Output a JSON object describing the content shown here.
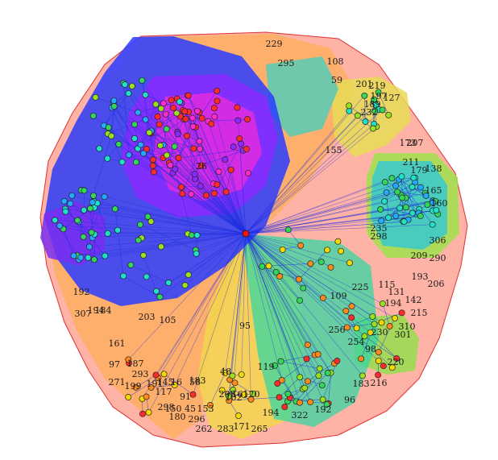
{
  "diagram": {
    "type": "network-graph-with-community-hulls",
    "colors": {
      "edge": "#1f2fe0",
      "hub_node": "#ff1010",
      "node_outline": "#222222",
      "node_palette": [
        "#ff2a2a",
        "#ff8a1a",
        "#f5d800",
        "#9be020",
        "#33d65a",
        "#1fe0c8",
        "#25a8ff",
        "#2a52ff",
        "#8a2aff",
        "#ff2ad0"
      ],
      "hull_palette": [
        "#ff5a5a",
        "#ff9a4a",
        "#f7c94a",
        "#c9e040",
        "#59e07a",
        "#3fd6d0",
        "#3aa0ff",
        "#2a3aff",
        "#8a2aff",
        "#e22ad8"
      ]
    },
    "labels": [
      "229",
      "295",
      "108",
      "59",
      "201",
      "219",
      "197",
      "189",
      "127",
      "232",
      "155",
      "211",
      "173",
      "179",
      "138",
      "165",
      "160",
      "207",
      "193",
      "206",
      "235",
      "298",
      "306",
      "290",
      "192",
      "194",
      "307",
      "184",
      "203",
      "105",
      "161",
      "97",
      "271",
      "199",
      "293",
      "117",
      "191",
      "298",
      "180",
      "296",
      "262",
      "283",
      "171",
      "265",
      "194",
      "322",
      "192",
      "96",
      "220",
      "216",
      "183",
      "98",
      "254",
      "230",
      "310",
      "301",
      "256",
      "194",
      "142",
      "215",
      "119",
      "102",
      "187",
      "145",
      "183",
      "150",
      "153",
      "208",
      "161",
      "120",
      "109",
      "225",
      "115",
      "131",
      "48",
      "91",
      "45",
      "58",
      "16",
      "26",
      "95",
      "209"
    ]
  }
}
